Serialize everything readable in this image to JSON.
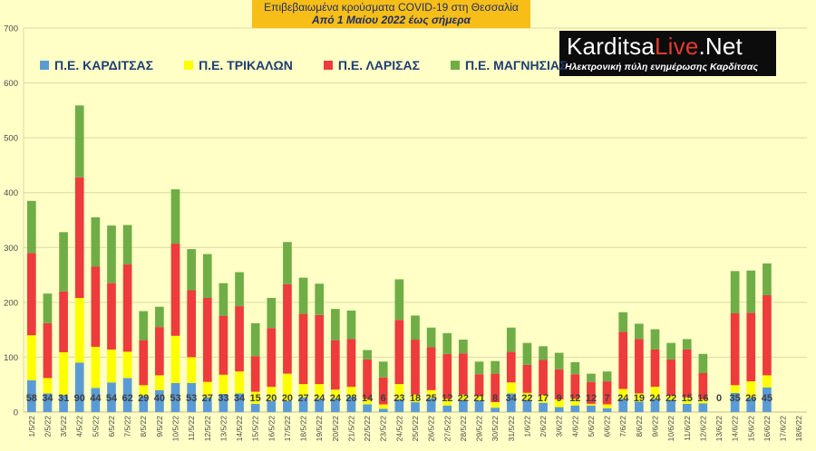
{
  "header": {
    "title_line1": "Επιβεβαιωμένα κρούσματα COVID-19 στη Θεσσαλία",
    "title_line2": "Από 1 Μαίου 2022 έως σήμερα"
  },
  "logo": {
    "brand_main": "Karditsa",
    "brand_accent": "Live",
    "brand_tail": ".Net",
    "tagline": "Ηλεκτρονική πύλη ενημέρωσης Καρδίτσας"
  },
  "colors": {
    "background": "#FFFFC6",
    "grid": "#D9D9AC",
    "karditsa": "#5B9BD5",
    "trikala": "#FFFF00",
    "larisa": "#EE3B3B",
    "magnisia": "#70AD47",
    "label": "#4A4A4A",
    "title_band": "#F7BE17"
  },
  "chart_data": {
    "type": "bar",
    "stacked": true,
    "title": "Επιβεβαιωμένα κρούσματα COVID-19 στη Θεσσαλία",
    "subtitle": "Από 1 Μαίου 2022 έως σήμερα",
    "ylim": [
      0,
      700
    ],
    "yticks": [
      0,
      100,
      200,
      300,
      400,
      500,
      600,
      700
    ],
    "grid": true,
    "legend_position": "top-left",
    "categories": [
      "1/5/22",
      "2/5/22",
      "3/5/22",
      "4/5/22",
      "5/5/22",
      "6/5/22",
      "7/5/22",
      "8/5/22",
      "9/5/22",
      "10/5/22",
      "11/5/22",
      "12/5/22",
      "13/5/22",
      "14/5/22",
      "15/5/22",
      "16/5/22",
      "17/5/22",
      "18/5/22",
      "19/5/22",
      "20/5/22",
      "21/5/22",
      "22/5/22",
      "23/5/22",
      "24/5/22",
      "25/5/22",
      "26/5/22",
      "27/5/22",
      "28/5/22",
      "29/5/22",
      "30/5/22",
      "31/5/22",
      "1/6/22",
      "2/6/22",
      "3/6/22",
      "4/6/22",
      "5/6/22",
      "6/6/22",
      "7/6/22",
      "8/6/22",
      "9/6/22",
      "10/6/22",
      "11/6/22",
      "12/6/22",
      "13/6/22",
      "14/6/22",
      "15/6/22",
      "16/6/22",
      "17/6/22",
      "18/6/22"
    ],
    "series": [
      {
        "name": "Π.Ε. ΚΑΡΔΙΤΣΑΣ",
        "color": "#5B9BD5",
        "values": [
          58,
          34,
          31,
          90,
          44,
          54,
          62,
          29,
          40,
          53,
          53,
          27,
          33,
          34,
          15,
          20,
          20,
          27,
          24,
          24,
          28,
          14,
          6,
          23,
          18,
          25,
          12,
          22,
          21,
          8,
          34,
          22,
          17,
          9,
          12,
          12,
          7,
          24,
          19,
          24,
          22,
          15,
          16,
          0,
          35,
          26,
          45,
          null,
          null
        ],
        "labels": [
          "58",
          "34",
          "31",
          "90",
          "44",
          "54",
          "62",
          "29",
          "40",
          "53",
          "53",
          "27",
          "33",
          "34",
          "15",
          "20",
          "20",
          "27",
          "24",
          "24",
          "28",
          "14",
          "6",
          "23",
          "18",
          "25",
          "12",
          "22",
          "21",
          "8",
          "34",
          "22",
          "17",
          "9",
          "12",
          "12",
          "7",
          "24",
          "19",
          "24",
          "22",
          "15",
          "16",
          "0",
          "35",
          "26",
          "45",
          "",
          ""
        ]
      },
      {
        "name": "Π.Ε. ΤΡΙΚΑΛΩΝ",
        "color": "#FFFF00",
        "values": [
          82,
          28,
          78,
          118,
          75,
          60,
          48,
          20,
          27,
          86,
          47,
          28,
          35,
          40,
          22,
          26,
          50,
          24,
          27,
          17,
          18,
          10,
          8,
          28,
          14,
          15,
          12,
          10,
          8,
          10,
          20,
          13,
          14,
          14,
          12,
          3,
          7,
          18,
          15,
          22,
          8,
          12,
          7,
          0,
          14,
          30,
          22,
          null,
          null
        ]
      },
      {
        "name": "Π.Ε. ΛΑΡΙΣΑΣ",
        "color": "#EE3B3B",
        "values": [
          150,
          100,
          111,
          220,
          146,
          121,
          159,
          82,
          88,
          168,
          122,
          153,
          107,
          119,
          65,
          107,
          163,
          128,
          126,
          90,
          87,
          72,
          49,
          117,
          100,
          78,
          82,
          75,
          40,
          52,
          56,
          51,
          64,
          55,
          45,
          40,
          42,
          104,
          99,
          68,
          66,
          87,
          48,
          0,
          131,
          125,
          146,
          null,
          null
        ]
      },
      {
        "name": "Π.Ε. ΜΑΓΝΗΣΙΑΣ",
        "color": "#70AD47",
        "values": [
          95,
          54,
          108,
          131,
          90,
          105,
          72,
          53,
          37,
          99,
          75,
          80,
          60,
          62,
          60,
          55,
          77,
          66,
          57,
          57,
          52,
          17,
          29,
          74,
          44,
          36,
          38,
          25,
          23,
          23,
          44,
          40,
          25,
          30,
          22,
          15,
          18,
          36,
          28,
          37,
          30,
          19,
          35,
          0,
          77,
          77,
          58,
          null,
          null
        ]
      }
    ]
  }
}
